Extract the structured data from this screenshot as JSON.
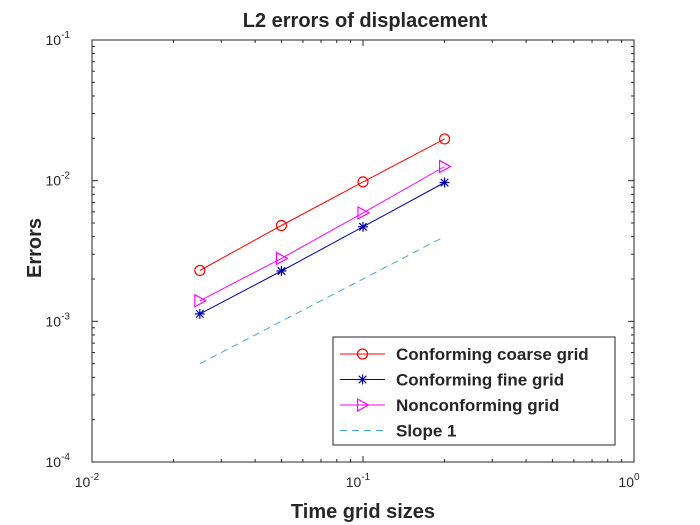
{
  "chart_data": {
    "type": "line",
    "title": "L2 errors of displacement",
    "xlabel": "Time grid sizes",
    "ylabel": "Errors",
    "xscale": "log",
    "yscale": "log",
    "xlim": [
      0.01,
      1
    ],
    "ylim": [
      0.0001,
      0.1
    ],
    "x_ticks": [
      {
        "value": 0.01,
        "base": "10",
        "exp": "-2"
      },
      {
        "value": 0.1,
        "base": "10",
        "exp": "-1"
      },
      {
        "value": 1,
        "base": "10",
        "exp": "0"
      }
    ],
    "y_ticks": [
      {
        "value": 0.0001,
        "base": "10",
        "exp": "-4"
      },
      {
        "value": 0.001,
        "base": "10",
        "exp": "-3"
      },
      {
        "value": 0.01,
        "base": "10",
        "exp": "-2"
      },
      {
        "value": 0.1,
        "base": "10",
        "exp": "-1"
      }
    ],
    "grid": false,
    "legend_position": "bottom-right",
    "series": [
      {
        "name": "Conforming coarse grid",
        "color": "#ff0000",
        "marker": "circle",
        "dash": "solid",
        "x": [
          0.025,
          0.05,
          0.1,
          0.2
        ],
        "y": [
          0.0023,
          0.0048,
          0.0098,
          0.0198
        ]
      },
      {
        "name": "Conforming fine grid",
        "color": "#0000aa",
        "marker": "asterisk",
        "dash": "solid",
        "x": [
          0.025,
          0.05,
          0.1,
          0.2
        ],
        "y": [
          0.00113,
          0.00228,
          0.0047,
          0.0097
        ]
      },
      {
        "name": "Nonconforming grid",
        "color": "#ff00ff",
        "marker": "triangle-right",
        "dash": "solid",
        "x": [
          0.025,
          0.05,
          0.1,
          0.2
        ],
        "y": [
          0.0014,
          0.0028,
          0.0059,
          0.0126
        ]
      },
      {
        "name": "Slope 1",
        "color": "#4aa6d6",
        "marker": "none",
        "dash": "dashed",
        "x": [
          0.025,
          0.2
        ],
        "y": [
          0.0005,
          0.004
        ]
      }
    ]
  }
}
